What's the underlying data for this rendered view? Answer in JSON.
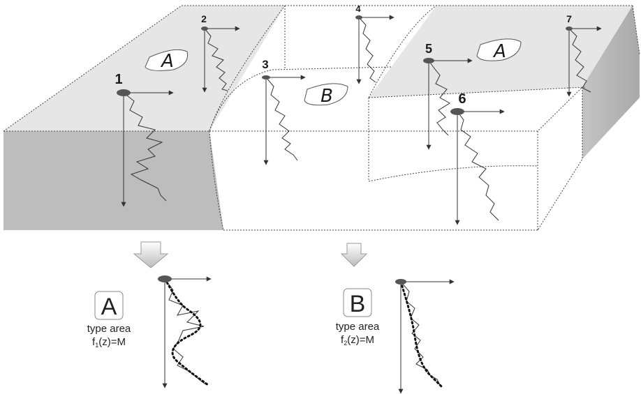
{
  "points": [
    {
      "id": "1",
      "label": "1"
    },
    {
      "id": "2",
      "label": "2"
    },
    {
      "id": "3",
      "label": "3"
    },
    {
      "id": "4",
      "label": "4"
    },
    {
      "id": "5",
      "label": "5"
    },
    {
      "id": "6",
      "label": "6"
    },
    {
      "id": "7",
      "label": "7"
    }
  ],
  "zones": {
    "a_left": "A",
    "b_center": "B",
    "a_right": "A"
  },
  "result_a": {
    "letter": "A",
    "caption": "type area",
    "func_prefix": "f",
    "func_sub": "1",
    "func_suffix": "(z)=M"
  },
  "result_b": {
    "letter": "B",
    "caption": "type area",
    "func_prefix": "f",
    "func_sub": "2",
    "func_suffix": "(z)=M"
  },
  "colors": {
    "surface_light": "#e6e6e6",
    "side_dark": "#bdbdbd",
    "line": "#333333",
    "marker": "#555555"
  }
}
